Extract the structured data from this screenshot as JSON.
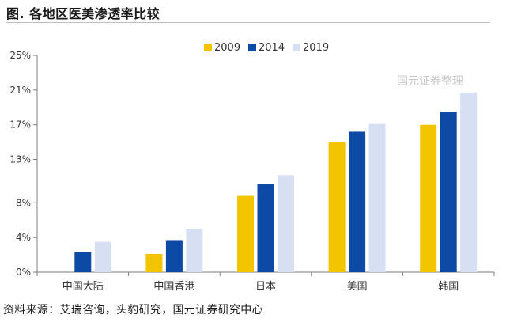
{
  "title": "图. 各地区医美渗透率比较",
  "source": "资料来源：艾瑞咨询，头豹研究，国元证券研究中心",
  "watermark": "国元证券整理",
  "colors": {
    "2009": "#f2c500",
    "2014": "#0d4aa6",
    "2019": "#d6e0f2",
    "axis": "#7f7f7f",
    "text": "#333333"
  },
  "chart_data": {
    "type": "bar",
    "categories": [
      "中国大陆",
      "中国香港",
      "日本",
      "美国",
      "韩国"
    ],
    "series": [
      {
        "name": "2009",
        "values": [
          0,
          2.1,
          8.8,
          15.0,
          17.0
        ]
      },
      {
        "name": "2014",
        "values": [
          2.3,
          3.7,
          10.2,
          16.2,
          18.5
        ]
      },
      {
        "name": "2019",
        "values": [
          3.5,
          5.0,
          11.2,
          17.1,
          20.7
        ]
      }
    ],
    "ylim": [
      0,
      25
    ],
    "yticks": [
      0,
      4,
      8,
      13,
      17,
      21,
      25
    ],
    "ytick_labels": [
      "0%",
      "4%",
      "8%",
      "13%",
      "17%",
      "21%",
      "25%"
    ],
    "legend": [
      "2009",
      "2014",
      "2019"
    ],
    "legend_position": "top-right",
    "grid": false
  }
}
